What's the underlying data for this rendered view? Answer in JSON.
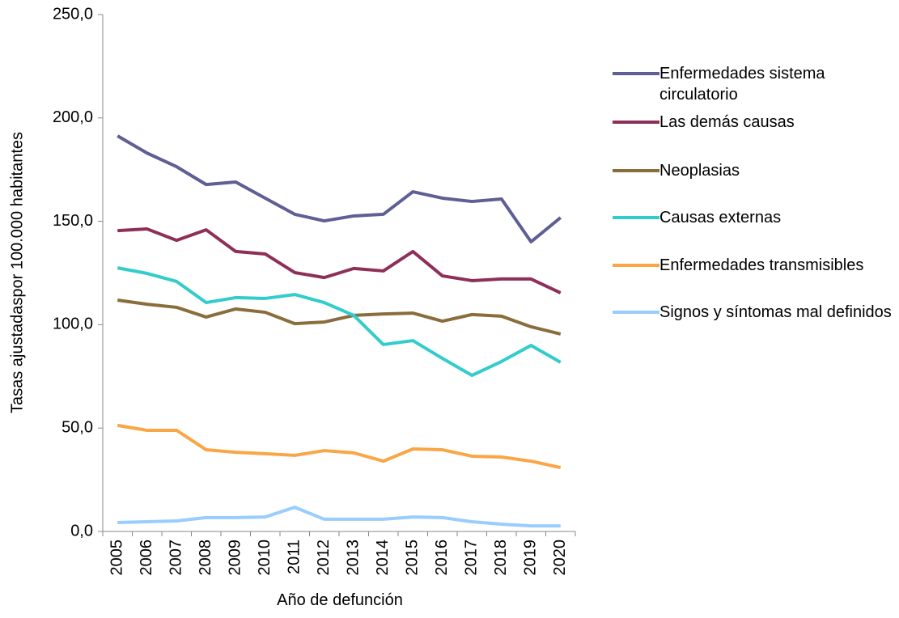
{
  "chart_data": {
    "type": "line",
    "x_label": "Año de defunción",
    "y_label": "Tasas ajustadaspor 100.000 habitantes",
    "categories": [
      "2005",
      "2006",
      "2007",
      "2008",
      "2009",
      "2010",
      "2011",
      "2012",
      "2013",
      "2014",
      "2015",
      "2016",
      "2017",
      "2018",
      "2019",
      "2020"
    ],
    "ylim": [
      0,
      250
    ],
    "yticks": [
      {
        "value": 0,
        "label": "0,0"
      },
      {
        "value": 50,
        "label": "50,0"
      },
      {
        "value": 100,
        "label": "100,0"
      },
      {
        "value": 150,
        "label": "150,0"
      },
      {
        "value": 200,
        "label": "200,0"
      },
      {
        "value": 250,
        "label": "250,0"
      }
    ],
    "series": [
      {
        "name": "Enfermedades sistema circulatorio",
        "color": "#5f5f95",
        "values": [
          191.3,
          183,
          176.4,
          167.8,
          169,
          161.2,
          153.4,
          150.2,
          152.6,
          153.4,
          164.3,
          161.2,
          159.6,
          160.8,
          140.1,
          151.8
        ]
      },
      {
        "name": "Las demás causas",
        "color": "#8e2f5a",
        "values": [
          145.5,
          146.3,
          140.8,
          145.9,
          135.4,
          134.2,
          125.2,
          122.8,
          127.2,
          126,
          135.4,
          123.6,
          121.3,
          122.1,
          122.1,
          115.4
        ]
      },
      {
        "name": "Neoplasias",
        "color": "#8a6d3b",
        "values": [
          111.9,
          109.9,
          108.4,
          103.7,
          107.6,
          106,
          100.5,
          101.3,
          104.5,
          105.2,
          105.6,
          101.7,
          104.9,
          104.1,
          99,
          95.5
        ]
      },
      {
        "name": "Causas externas",
        "color": "#33cccc",
        "values": [
          127.5,
          124.8,
          120.9,
          110.7,
          113.1,
          112.7,
          114.6,
          110.7,
          104.5,
          90.4,
          92.3,
          83.7,
          75.5,
          82.2,
          90,
          81.8
        ]
      },
      {
        "name": "Enfermedades transmisibles",
        "color": "#f9a645",
        "values": [
          51.3,
          48.9,
          48.9,
          39.5,
          38.3,
          37.6,
          36.8,
          39.1,
          38,
          34,
          39.9,
          39.5,
          36.4,
          36,
          34,
          30.9
        ]
      },
      {
        "name": "Signos y síntomas mal definidos",
        "color": "#99ccff",
        "values": [
          4.3,
          4.7,
          5.1,
          6.7,
          6.7,
          7,
          11.7,
          5.9,
          5.9,
          5.9,
          7,
          6.7,
          4.7,
          3.5,
          2.7,
          2.7
        ]
      }
    ],
    "grid": false
  }
}
